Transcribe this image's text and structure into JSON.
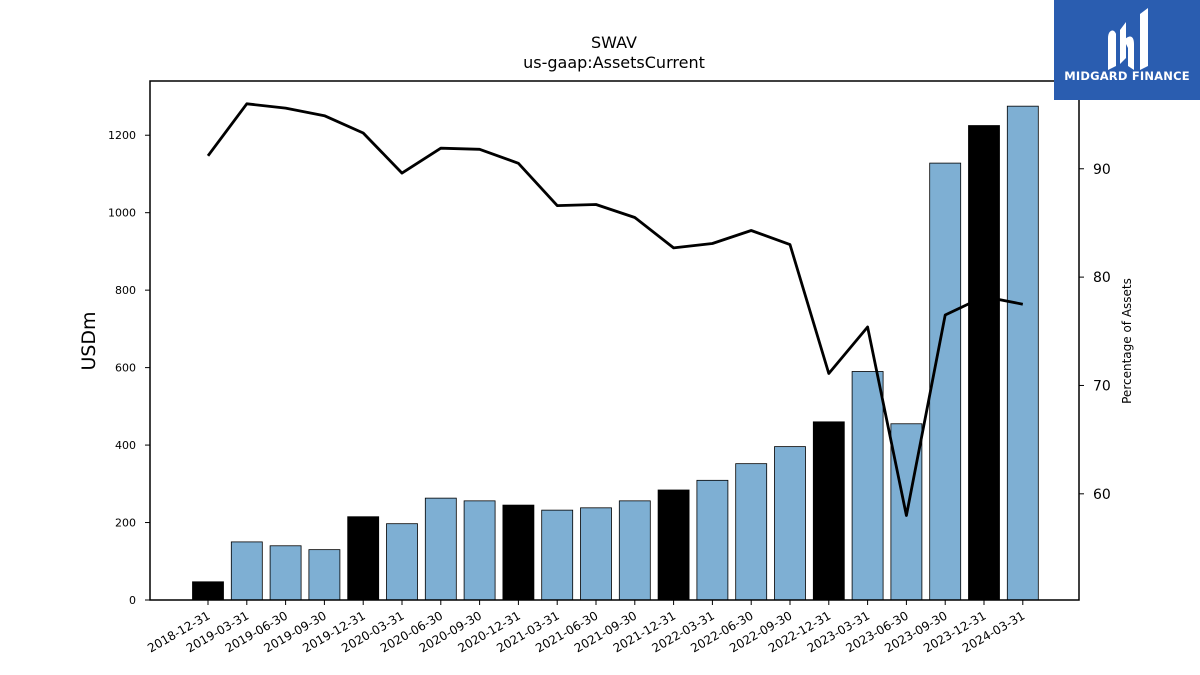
{
  "brand": {
    "name": "MIDGARD FINANCE",
    "logo_icon": "midgard-m-icon",
    "colors": {
      "box": "#2a5db0",
      "text": "#ffffff"
    }
  },
  "chart_data": {
    "type": "bar",
    "title": "SWAV",
    "subtitle": "us-gaap:AssetsCurrent",
    "ylabel": "USDm",
    "y2label": "Percentage of Assets",
    "xlabel": "",
    "categories": [
      "2018-12-31",
      "2019-03-31",
      "2019-06-30",
      "2019-09-30",
      "2019-12-31",
      "2020-03-31",
      "2020-06-30",
      "2020-09-30",
      "2020-12-31",
      "2021-03-31",
      "2021-06-30",
      "2021-09-30",
      "2021-12-31",
      "2022-03-31",
      "2022-06-30",
      "2022-09-30",
      "2022-12-31",
      "2023-03-31",
      "2023-06-30",
      "2023-09-30",
      "2023-12-31",
      "2024-03-31"
    ],
    "values": [
      47,
      150,
      140,
      130,
      215,
      197,
      263,
      256,
      245,
      232,
      238,
      256,
      284,
      309,
      352,
      396,
      460,
      590,
      455,
      1128,
      1225,
      1275
    ],
    "fiscal_year_end": [
      true,
      false,
      false,
      false,
      true,
      false,
      false,
      false,
      true,
      false,
      false,
      false,
      true,
      false,
      false,
      false,
      true,
      false,
      false,
      false,
      true,
      false
    ],
    "bar_colors": {
      "year_end": "#000000",
      "quarter": "#7eafd3",
      "edge": "#000000"
    },
    "line_series": {
      "values": [
        91.2,
        96.0,
        95.6,
        94.9,
        93.3,
        89.6,
        91.9,
        91.8,
        90.5,
        86.6,
        86.7,
        85.5,
        82.7,
        83.1,
        84.3,
        83.0,
        71.1,
        75.4,
        58.0,
        76.5,
        78.2,
        77.5
      ],
      "color": "#000000"
    },
    "ylim": [
      0,
      1340
    ],
    "yticks": [
      0,
      200,
      400,
      600,
      800,
      1000,
      1200
    ],
    "y2lim": [
      50.2,
      98.1
    ],
    "y2ticks": [
      60,
      70,
      80,
      90
    ],
    "grid": false,
    "legend": "none"
  }
}
